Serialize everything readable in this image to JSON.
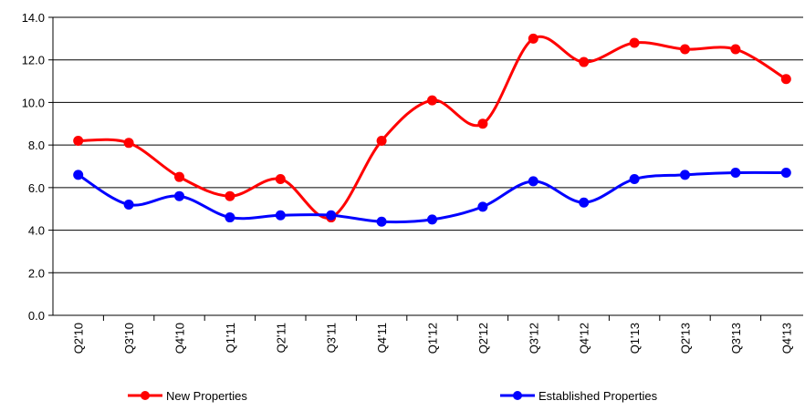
{
  "chart_data": {
    "type": "line",
    "categories": [
      "Q2'10",
      "Q3'10",
      "Q4'10",
      "Q1'11",
      "Q2'11",
      "Q3'11",
      "Q4'11",
      "Q1'12",
      "Q2'12",
      "Q3'12",
      "Q4'12",
      "Q1'13",
      "Q2'13",
      "Q3'13",
      "Q4'13"
    ],
    "series": [
      {
        "name": "New Properties",
        "color": "#ff0000",
        "values": [
          8.2,
          8.1,
          6.5,
          5.6,
          6.4,
          4.6,
          8.2,
          10.1,
          9.0,
          13.0,
          11.9,
          12.8,
          12.5,
          12.5,
          11.1
        ]
      },
      {
        "name": "Established Properties",
        "color": "#0000ff",
        "values": [
          6.6,
          5.2,
          5.6,
          4.6,
          4.7,
          4.7,
          4.4,
          4.5,
          5.1,
          6.3,
          5.3,
          6.4,
          6.6,
          6.7,
          6.7
        ]
      }
    ],
    "ylim": [
      0,
      14
    ],
    "yticks": [
      {
        "value": 0,
        "label": "0.0"
      },
      {
        "value": 2,
        "label": "2.0"
      },
      {
        "value": 4,
        "label": "4.0"
      },
      {
        "value": 6,
        "label": "6.0"
      },
      {
        "value": 8,
        "label": "8.0"
      },
      {
        "value": 10,
        "label": "10.0"
      },
      {
        "value": 12,
        "label": "12.0"
      },
      {
        "value": 14,
        "label": "14.0"
      }
    ],
    "grid": true,
    "smooth": true,
    "legend": "bottom"
  }
}
